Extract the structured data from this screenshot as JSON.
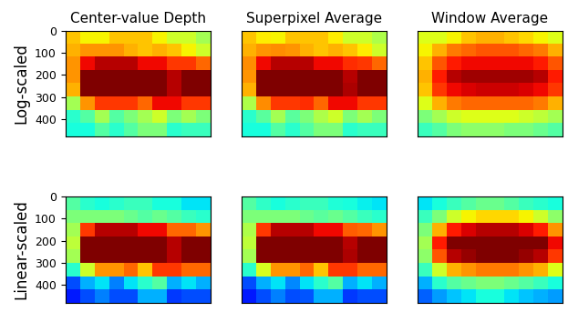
{
  "chart_data": [
    {
      "type": "heatmap",
      "title": "Center-value Depth",
      "ylabel": "Log-scaled",
      "xlim": [
        0,
        640
      ],
      "ylim": [
        480,
        0
      ],
      "xticks": [],
      "yticks": [
        0,
        100,
        200,
        300,
        400
      ],
      "tick_labels": "y",
      "color_range": [
        0,
        1
      ],
      "cells": [
        [
          0.7,
          0.65,
          0.65,
          0.7,
          0.7,
          0.7,
          0.65,
          0.6,
          0.6,
          0.55
        ],
        [
          0.72,
          0.75,
          0.75,
          0.75,
          0.72,
          0.7,
          0.72,
          0.7,
          0.65,
          0.6
        ],
        [
          0.75,
          0.9,
          0.95,
          0.95,
          0.95,
          0.9,
          0.9,
          0.85,
          0.85,
          0.8
        ],
        [
          0.75,
          1,
          1,
          1,
          1,
          1,
          1,
          0.95,
          1,
          1
        ],
        [
          0.72,
          1,
          1,
          1,
          1,
          1,
          1,
          0.95,
          1,
          1
        ],
        [
          0.55,
          0.75,
          0.85,
          0.85,
          0.85,
          0.8,
          0.9,
          0.9,
          0.85,
          0.85
        ],
        [
          0.4,
          0.45,
          0.55,
          0.45,
          0.5,
          0.55,
          0.6,
          0.5,
          0.55,
          0.5
        ],
        [
          0.38,
          0.38,
          0.45,
          0.4,
          0.45,
          0.5,
          0.5,
          0.4,
          0.42,
          0.42
        ]
      ]
    },
    {
      "type": "heatmap",
      "title": "Superpixel Average",
      "xlim": [
        0,
        640
      ],
      "ylim": [
        480,
        0
      ],
      "xticks": [],
      "tick_labels": false,
      "color_range": [
        0,
        1
      ],
      "cells": [
        [
          0.7,
          0.66,
          0.65,
          0.7,
          0.7,
          0.7,
          0.66,
          0.6,
          0.6,
          0.56
        ],
        [
          0.72,
          0.75,
          0.76,
          0.75,
          0.72,
          0.7,
          0.72,
          0.7,
          0.66,
          0.6
        ],
        [
          0.76,
          0.9,
          0.95,
          0.95,
          0.95,
          0.9,
          0.9,
          0.86,
          0.85,
          0.8
        ],
        [
          0.75,
          1,
          1,
          1,
          1,
          1,
          1,
          0.95,
          1,
          1
        ],
        [
          0.72,
          1,
          1,
          1,
          1,
          1,
          1,
          0.96,
          1,
          1
        ],
        [
          0.56,
          0.76,
          0.85,
          0.85,
          0.86,
          0.8,
          0.9,
          0.9,
          0.85,
          0.85
        ],
        [
          0.4,
          0.46,
          0.55,
          0.46,
          0.5,
          0.56,
          0.6,
          0.5,
          0.55,
          0.5
        ],
        [
          0.38,
          0.38,
          0.45,
          0.4,
          0.45,
          0.5,
          0.5,
          0.4,
          0.42,
          0.42
        ]
      ]
    },
    {
      "type": "heatmap",
      "title": "Window Average",
      "xlim": [
        0,
        640
      ],
      "ylim": [
        480,
        0
      ],
      "xticks": [],
      "tick_labels": false,
      "color_range": [
        0,
        1
      ],
      "cells": [
        [
          0.62,
          0.62,
          0.65,
          0.7,
          0.72,
          0.72,
          0.7,
          0.68,
          0.65,
          0.62
        ],
        [
          0.65,
          0.72,
          0.78,
          0.8,
          0.82,
          0.82,
          0.82,
          0.8,
          0.78,
          0.72
        ],
        [
          0.7,
          0.82,
          0.88,
          0.9,
          0.9,
          0.9,
          0.9,
          0.9,
          0.88,
          0.82
        ],
        [
          0.72,
          0.88,
          0.95,
          0.97,
          0.97,
          0.97,
          0.97,
          0.97,
          0.95,
          0.88
        ],
        [
          0.7,
          0.85,
          0.9,
          0.92,
          0.93,
          0.93,
          0.93,
          0.92,
          0.9,
          0.85
        ],
        [
          0.62,
          0.72,
          0.78,
          0.8,
          0.8,
          0.8,
          0.8,
          0.8,
          0.78,
          0.72
        ],
        [
          0.5,
          0.55,
          0.6,
          0.62,
          0.62,
          0.62,
          0.62,
          0.6,
          0.58,
          0.55
        ],
        [
          0.42,
          0.45,
          0.5,
          0.52,
          0.52,
          0.52,
          0.5,
          0.5,
          0.48,
          0.45
        ]
      ]
    },
    {
      "type": "heatmap",
      "ylabel": "Linear-scaled",
      "xlim": [
        0,
        640
      ],
      "ylim": [
        480,
        0
      ],
      "xticks": [],
      "yticks": [
        0,
        100,
        200,
        300,
        400
      ],
      "tick_labels": "y",
      "color_range": [
        0,
        1
      ],
      "cells": [
        [
          0.45,
          0.4,
          0.38,
          0.4,
          0.42,
          0.42,
          0.38,
          0.38,
          0.35,
          0.35
        ],
        [
          0.5,
          0.5,
          0.5,
          0.5,
          0.48,
          0.45,
          0.48,
          0.45,
          0.42,
          0.4
        ],
        [
          0.55,
          0.85,
          0.95,
          0.95,
          0.95,
          0.9,
          0.9,
          0.8,
          0.8,
          0.75
        ],
        [
          0.58,
          1,
          1,
          1,
          1,
          1,
          1,
          0.95,
          1,
          1
        ],
        [
          0.55,
          1,
          1,
          1,
          1,
          1,
          1,
          0.95,
          1,
          1
        ],
        [
          0.4,
          0.6,
          0.75,
          0.75,
          0.8,
          0.7,
          0.85,
          0.85,
          0.8,
          0.8
        ],
        [
          0.2,
          0.3,
          0.35,
          0.25,
          0.35,
          0.4,
          0.45,
          0.3,
          0.35,
          0.3
        ],
        [
          0.15,
          0.2,
          0.25,
          0.2,
          0.2,
          0.3,
          0.3,
          0.18,
          0.2,
          0.2
        ]
      ]
    },
    {
      "type": "heatmap",
      "xlim": [
        0,
        640
      ],
      "ylim": [
        480,
        0
      ],
      "xticks": [],
      "tick_labels": false,
      "color_range": [
        0,
        1
      ],
      "cells": [
        [
          0.45,
          0.41,
          0.38,
          0.4,
          0.42,
          0.42,
          0.39,
          0.38,
          0.36,
          0.35
        ],
        [
          0.5,
          0.5,
          0.5,
          0.5,
          0.48,
          0.46,
          0.48,
          0.45,
          0.42,
          0.4
        ],
        [
          0.56,
          0.85,
          0.95,
          0.95,
          0.95,
          0.9,
          0.9,
          0.81,
          0.8,
          0.75
        ],
        [
          0.58,
          1,
          1,
          1,
          1,
          1,
          1,
          0.95,
          1,
          1
        ],
        [
          0.55,
          1,
          1,
          1,
          1,
          1,
          1,
          0.96,
          1,
          1
        ],
        [
          0.4,
          0.61,
          0.75,
          0.75,
          0.8,
          0.7,
          0.85,
          0.85,
          0.8,
          0.8
        ],
        [
          0.2,
          0.3,
          0.35,
          0.26,
          0.35,
          0.4,
          0.45,
          0.3,
          0.35,
          0.3
        ],
        [
          0.15,
          0.2,
          0.25,
          0.2,
          0.21,
          0.3,
          0.3,
          0.18,
          0.2,
          0.2
        ]
      ]
    },
    {
      "type": "heatmap",
      "xlim": [
        0,
        640
      ],
      "ylim": [
        480,
        0
      ],
      "xticks": [],
      "tick_labels": false,
      "color_range": [
        0,
        1
      ],
      "cells": [
        [
          0.35,
          0.38,
          0.42,
          0.45,
          0.48,
          0.48,
          0.45,
          0.42,
          0.4,
          0.38
        ],
        [
          0.42,
          0.5,
          0.6,
          0.65,
          0.68,
          0.68,
          0.68,
          0.65,
          0.6,
          0.52
        ],
        [
          0.5,
          0.72,
          0.88,
          0.92,
          0.95,
          0.95,
          0.95,
          0.92,
          0.88,
          0.75
        ],
        [
          0.55,
          0.88,
          1,
          1,
          1,
          1,
          1,
          1,
          1,
          0.9
        ],
        [
          0.52,
          0.82,
          0.95,
          0.98,
          1,
          1,
          1,
          0.98,
          0.95,
          0.85
        ],
        [
          0.42,
          0.6,
          0.72,
          0.75,
          0.78,
          0.78,
          0.78,
          0.75,
          0.72,
          0.62
        ],
        [
          0.3,
          0.4,
          0.45,
          0.48,
          0.5,
          0.5,
          0.48,
          0.45,
          0.42,
          0.38
        ],
        [
          0.22,
          0.28,
          0.32,
          0.35,
          0.38,
          0.38,
          0.35,
          0.32,
          0.3,
          0.28
        ]
      ]
    }
  ]
}
